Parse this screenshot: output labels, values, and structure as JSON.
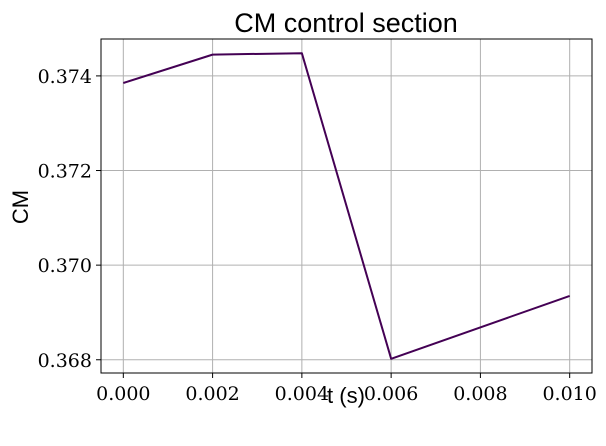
{
  "chart_data": {
    "type": "line",
    "title": "CM control section",
    "xlabel": "t (s)",
    "ylabel": "CM",
    "x": [
      0.0,
      0.002,
      0.004,
      0.006,
      0.01
    ],
    "series": [
      {
        "values": [
          0.37385,
          0.37445,
          0.37448,
          0.36802,
          0.36935
        ],
        "color": "#440154"
      }
    ],
    "xticks": [
      0.0,
      0.002,
      0.004,
      0.006,
      0.008,
      0.01
    ],
    "xtick_labels": [
      "0.000",
      "0.002",
      "0.004",
      "0.006",
      "0.008",
      "0.010"
    ],
    "yticks": [
      0.368,
      0.37,
      0.372,
      0.374
    ],
    "ytick_labels": [
      "0.368",
      "0.370",
      "0.372",
      "0.374"
    ],
    "xlim": [
      -0.0005,
      0.0105
    ],
    "ylim": [
      0.36772,
      0.37478
    ],
    "grid": true,
    "grid_color": "#b0b0b0"
  }
}
